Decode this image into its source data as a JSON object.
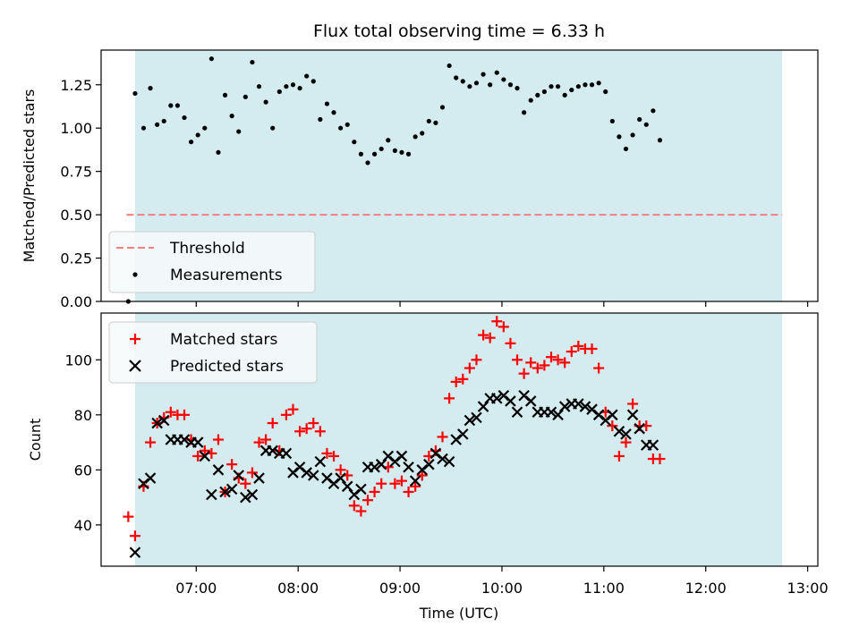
{
  "chart_data": [
    {
      "type": "scatter",
      "title": "Flux total observing time = 6.33 h",
      "xlabel": "",
      "ylabel": "Matched/Predicted stars",
      "ylim": [
        0,
        1.45
      ],
      "yticks": [
        0.0,
        0.25,
        0.5,
        0.75,
        1.0,
        1.25
      ],
      "ytick_labels": [
        "0.00",
        "0.25",
        "0.50",
        "0.75",
        "1.00",
        "1.25"
      ],
      "xlim": [
        "06:04",
        "13:06"
      ],
      "x_ticks": [
        "07:00",
        "08:00",
        "09:00",
        "10:00",
        "11:00",
        "12:00",
        "13:00"
      ],
      "x_tick_labels": [
        "",
        "",
        "",
        "",
        "",
        "",
        ""
      ],
      "grid": false,
      "legend_position": "lower-left",
      "shaded_span": {
        "from": "06:24",
        "to": "12:45",
        "color": "#d4ebf0"
      },
      "threshold": {
        "name": "Threshold",
        "value": 0.5,
        "from": "06:19",
        "to": "12:45",
        "color": "#f08080"
      },
      "series": [
        {
          "name": "Measurements",
          "color": "#000000",
          "points": [
            [
              "06:20",
              0.0
            ],
            [
              "06:24",
              1.2
            ],
            [
              "06:29",
              1.0
            ],
            [
              "06:33",
              1.23
            ],
            [
              "06:37",
              1.02
            ],
            [
              "06:41",
              1.04
            ],
            [
              "06:45",
              1.13
            ],
            [
              "06:49",
              1.13
            ],
            [
              "06:53",
              1.06
            ],
            [
              "06:57",
              0.92
            ],
            [
              "07:01",
              0.96
            ],
            [
              "07:05",
              1.0
            ],
            [
              "07:09",
              1.4
            ],
            [
              "07:13",
              0.86
            ],
            [
              "07:17",
              1.19
            ],
            [
              "07:21",
              1.07
            ],
            [
              "07:25",
              0.98
            ],
            [
              "07:29",
              1.18
            ],
            [
              "07:33",
              1.38
            ],
            [
              "07:37",
              1.24
            ],
            [
              "07:41",
              1.15
            ],
            [
              "07:45",
              1.0
            ],
            [
              "07:49",
              1.21
            ],
            [
              "07:53",
              1.24
            ],
            [
              "07:57",
              1.25
            ],
            [
              "08:01",
              1.23
            ],
            [
              "08:05",
              1.3
            ],
            [
              "08:09",
              1.27
            ],
            [
              "08:13",
              1.05
            ],
            [
              "08:17",
              1.14
            ],
            [
              "08:21",
              1.09
            ],
            [
              "08:25",
              1.0
            ],
            [
              "08:29",
              1.02
            ],
            [
              "08:33",
              0.92
            ],
            [
              "08:37",
              0.85
            ],
            [
              "08:41",
              0.8
            ],
            [
              "08:45",
              0.85
            ],
            [
              "08:49",
              0.88
            ],
            [
              "08:53",
              0.93
            ],
            [
              "08:57",
              0.87
            ],
            [
              "09:01",
              0.86
            ],
            [
              "09:05",
              0.85
            ],
            [
              "09:09",
              0.95
            ],
            [
              "09:13",
              0.97
            ],
            [
              "09:17",
              1.04
            ],
            [
              "09:21",
              1.03
            ],
            [
              "09:25",
              1.12
            ],
            [
              "09:29",
              1.36
            ],
            [
              "09:33",
              1.29
            ],
            [
              "09:37",
              1.27
            ],
            [
              "09:41",
              1.24
            ],
            [
              "09:45",
              1.26
            ],
            [
              "09:49",
              1.31
            ],
            [
              "09:53",
              1.25
            ],
            [
              "09:57",
              1.32
            ],
            [
              "10:01",
              1.28
            ],
            [
              "10:05",
              1.25
            ],
            [
              "10:09",
              1.23
            ],
            [
              "10:13",
              1.09
            ],
            [
              "10:17",
              1.16
            ],
            [
              "10:21",
              1.19
            ],
            [
              "10:25",
              1.21
            ],
            [
              "10:29",
              1.24
            ],
            [
              "10:33",
              1.24
            ],
            [
              "10:37",
              1.19
            ],
            [
              "10:41",
              1.22
            ],
            [
              "10:45",
              1.24
            ],
            [
              "10:49",
              1.25
            ],
            [
              "10:53",
              1.25
            ],
            [
              "10:57",
              1.26
            ],
            [
              "11:01",
              1.21
            ],
            [
              "11:05",
              1.04
            ],
            [
              "11:09",
              0.95
            ],
            [
              "11:13",
              0.88
            ],
            [
              "11:17",
              0.96
            ],
            [
              "11:21",
              1.05
            ],
            [
              "11:25",
              1.02
            ],
            [
              "11:29",
              1.1
            ],
            [
              "11:33",
              0.93
            ]
          ]
        }
      ]
    },
    {
      "type": "scatter",
      "title": "",
      "xlabel": "Time (UTC)",
      "ylabel": "Count",
      "ylim": [
        25,
        117
      ],
      "yticks": [
        40,
        60,
        80,
        100
      ],
      "ytick_labels": [
        "40",
        "60",
        "80",
        "100"
      ],
      "xlim": [
        "06:04",
        "13:06"
      ],
      "x_ticks": [
        "07:00",
        "08:00",
        "09:00",
        "10:00",
        "11:00",
        "12:00",
        "13:00"
      ],
      "x_tick_labels": [
        "07:00",
        "08:00",
        "09:00",
        "10:00",
        "11:00",
        "12:00",
        "13:00"
      ],
      "grid": false,
      "legend_position": "upper-left",
      "shaded_span": {
        "from": "06:24",
        "to": "12:45",
        "color": "#d4ebf0"
      },
      "series": [
        {
          "name": "Matched stars",
          "marker": "plus",
          "color": "#ff0000",
          "points": [
            [
              "06:20",
              43
            ],
            [
              "06:24",
              36
            ],
            [
              "06:29",
              54
            ],
            [
              "06:33",
              70
            ],
            [
              "06:37",
              77
            ],
            [
              "06:41",
              79
            ],
            [
              "06:45",
              81
            ],
            [
              "06:49",
              80
            ],
            [
              "06:53",
              80
            ],
            [
              "06:57",
              71
            ],
            [
              "07:01",
              65
            ],
            [
              "07:05",
              67
            ],
            [
              "07:09",
              66
            ],
            [
              "07:13",
              71
            ],
            [
              "07:17",
              52
            ],
            [
              "07:21",
              62
            ],
            [
              "07:25",
              57
            ],
            [
              "07:29",
              55
            ],
            [
              "07:33",
              59
            ],
            [
              "07:37",
              70
            ],
            [
              "07:41",
              71
            ],
            [
              "07:45",
              77
            ],
            [
              "07:49",
              67
            ],
            [
              "07:53",
              80
            ],
            [
              "07:57",
              82
            ],
            [
              "08:01",
              74
            ],
            [
              "08:05",
              75
            ],
            [
              "08:09",
              77
            ],
            [
              "08:13",
              74
            ],
            [
              "08:17",
              66
            ],
            [
              "08:21",
              65
            ],
            [
              "08:25",
              60
            ],
            [
              "08:29",
              58
            ],
            [
              "08:33",
              47
            ],
            [
              "08:37",
              45
            ],
            [
              "08:41",
              49
            ],
            [
              "08:45",
              52
            ],
            [
              "08:49",
              55
            ],
            [
              "08:53",
              61
            ],
            [
              "08:57",
              55
            ],
            [
              "09:01",
              56
            ],
            [
              "09:05",
              52
            ],
            [
              "09:09",
              54
            ],
            [
              "09:13",
              58
            ],
            [
              "09:17",
              65
            ],
            [
              "09:21",
              67
            ],
            [
              "09:25",
              72
            ],
            [
              "09:29",
              86
            ],
            [
              "09:33",
              92
            ],
            [
              "09:37",
              93
            ],
            [
              "09:41",
              97
            ],
            [
              "09:45",
              100
            ],
            [
              "09:49",
              109
            ],
            [
              "09:53",
              108
            ],
            [
              "09:57",
              114
            ],
            [
              "10:01",
              112
            ],
            [
              "10:05",
              106
            ],
            [
              "10:09",
              100
            ],
            [
              "10:13",
              95
            ],
            [
              "10:17",
              99
            ],
            [
              "10:21",
              97
            ],
            [
              "10:25",
              98
            ],
            [
              "10:29",
              101
            ],
            [
              "10:33",
              100
            ],
            [
              "10:37",
              99
            ],
            [
              "10:41",
              103
            ],
            [
              "10:45",
              105
            ],
            [
              "10:49",
              104
            ],
            [
              "10:53",
              104
            ],
            [
              "10:57",
              97
            ],
            [
              "11:01",
              81
            ],
            [
              "11:05",
              76
            ],
            [
              "11:09",
              65
            ],
            [
              "11:13",
              70
            ],
            [
              "11:17",
              84
            ],
            [
              "11:21",
              76
            ],
            [
              "11:25",
              76
            ],
            [
              "11:29",
              64
            ],
            [
              "11:33",
              64
            ]
          ]
        },
        {
          "name": "Predicted stars",
          "marker": "x",
          "color": "#000000",
          "points": [
            [
              "06:24",
              30
            ],
            [
              "06:29",
              55
            ],
            [
              "06:33",
              57
            ],
            [
              "06:37",
              77
            ],
            [
              "06:41",
              78
            ],
            [
              "06:45",
              71
            ],
            [
              "06:49",
              71
            ],
            [
              "06:53",
              71
            ],
            [
              "06:57",
              70
            ],
            [
              "07:01",
              70
            ],
            [
              "07:05",
              65
            ],
            [
              "07:09",
              51
            ],
            [
              "07:13",
              60
            ],
            [
              "07:17",
              52
            ],
            [
              "07:21",
              53
            ],
            [
              "07:25",
              58
            ],
            [
              "07:29",
              50
            ],
            [
              "07:33",
              51
            ],
            [
              "07:37",
              57
            ],
            [
              "07:41",
              67
            ],
            [
              "07:45",
              67
            ],
            [
              "07:49",
              66
            ],
            [
              "07:53",
              66
            ],
            [
              "07:57",
              59
            ],
            [
              "08:01",
              61
            ],
            [
              "08:05",
              59
            ],
            [
              "08:09",
              58
            ],
            [
              "08:13",
              63
            ],
            [
              "08:17",
              57
            ],
            [
              "08:21",
              55
            ],
            [
              "08:25",
              57
            ],
            [
              "08:29",
              54
            ],
            [
              "08:33",
              51
            ],
            [
              "08:37",
              53
            ],
            [
              "08:41",
              61
            ],
            [
              "08:45",
              61
            ],
            [
              "08:49",
              62
            ],
            [
              "08:53",
              65
            ],
            [
              "08:57",
              63
            ],
            [
              "09:01",
              65
            ],
            [
              "09:05",
              61
            ],
            [
              "09:09",
              56
            ],
            [
              "09:13",
              60
            ],
            [
              "09:17",
              62
            ],
            [
              "09:21",
              66
            ],
            [
              "09:25",
              64
            ],
            [
              "09:29",
              63
            ],
            [
              "09:33",
              71
            ],
            [
              "09:37",
              73
            ],
            [
              "09:41",
              78
            ],
            [
              "09:45",
              79
            ],
            [
              "09:49",
              83
            ],
            [
              "09:53",
              86
            ],
            [
              "09:57",
              86
            ],
            [
              "10:01",
              87
            ],
            [
              "10:05",
              85
            ],
            [
              "10:09",
              81
            ],
            [
              "10:13",
              87
            ],
            [
              "10:17",
              85
            ],
            [
              "10:21",
              81
            ],
            [
              "10:25",
              81
            ],
            [
              "10:29",
              81
            ],
            [
              "10:33",
              80
            ],
            [
              "10:37",
              83
            ],
            [
              "10:41",
              84
            ],
            [
              "10:45",
              84
            ],
            [
              "10:49",
              83
            ],
            [
              "10:53",
              82
            ],
            [
              "10:57",
              80
            ],
            [
              "11:01",
              78
            ],
            [
              "11:05",
              80
            ],
            [
              "11:09",
              74
            ],
            [
              "11:13",
              73
            ],
            [
              "11:17",
              80
            ],
            [
              "11:21",
              75
            ],
            [
              "11:25",
              69
            ],
            [
              "11:29",
              69
            ]
          ]
        }
      ]
    }
  ]
}
